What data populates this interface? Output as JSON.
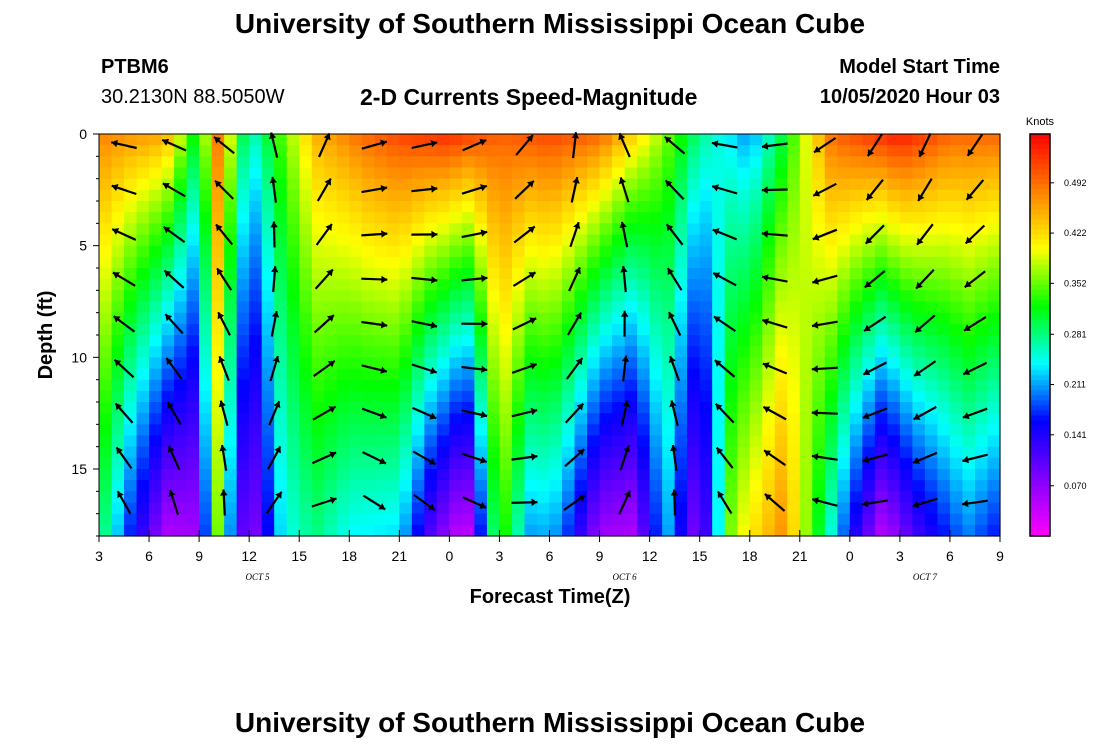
{
  "header": {
    "title": "University of Southern Mississippi Ocean Cube",
    "station_id": "PTBM6",
    "station_coords": "30.2130N 88.5050W",
    "chart_title": "2-D Currents Speed-Magnitude",
    "model_start_label": "Model Start Time",
    "model_start_value": "10/05/2020 Hour 03"
  },
  "footer": {
    "title": "University of Southern Mississippi Ocean Cube"
  },
  "chart_data": {
    "type": "heatmap",
    "title": "2-D Currents Speed-Magnitude",
    "xlabel": "Forecast Time(Z)",
    "ylabel": "Depth (ft)",
    "x_ticks": [
      "3",
      "6",
      "9",
      "12",
      "15",
      "18",
      "21",
      "0",
      "3",
      "6",
      "9",
      "12",
      "15",
      "18",
      "21",
      "0",
      "3",
      "6",
      "9"
    ],
    "x_range_hours": [
      0,
      54
    ],
    "date_labels": [
      {
        "label": "OCT 5",
        "hour": 9.5
      },
      {
        "label": "OCT 6",
        "hour": 31.5
      },
      {
        "label": "OCT 7",
        "hour": 49.5
      }
    ],
    "y_ticks": [
      0,
      5,
      10,
      15
    ],
    "ylim": [
      0,
      18
    ],
    "y_inverted": true,
    "colorbar": {
      "unit": "Knots",
      "ticks": [
        0.07,
        0.141,
        0.211,
        0.281,
        0.352,
        0.422,
        0.492
      ],
      "tick_labels": [
        "0.070",
        "0.141",
        "0.211",
        "0.281",
        "0.352",
        "0.422",
        "0.492"
      ],
      "range": [
        0.0,
        0.56
      ],
      "colors": [
        "#ff00ff",
        "#8000ff",
        "#0000ff",
        "#00ffff",
        "#00ff00",
        "#ffff00",
        "#ff8000",
        "#ff0000"
      ]
    },
    "surface_speed_by_hour": [
      [
        0,
        0.48
      ],
      [
        4,
        0.46
      ],
      [
        6,
        0.3
      ],
      [
        7,
        0.5
      ],
      [
        9,
        0.25
      ],
      [
        13,
        0.45
      ],
      [
        16,
        0.5
      ],
      [
        18,
        0.52
      ],
      [
        21,
        0.54
      ],
      [
        24,
        0.5
      ],
      [
        27,
        0.52
      ],
      [
        30,
        0.5
      ],
      [
        33,
        0.4
      ],
      [
        36,
        0.28
      ],
      [
        39,
        0.2
      ],
      [
        41,
        0.3
      ],
      [
        44,
        0.5
      ],
      [
        48,
        0.55
      ],
      [
        51,
        0.5
      ],
      [
        54,
        0.5
      ]
    ],
    "bottom_speed_by_hour": [
      [
        0,
        0.3
      ],
      [
        2,
        0.16
      ],
      [
        4,
        0.05
      ],
      [
        6,
        0.06
      ],
      [
        7,
        0.38
      ],
      [
        8,
        0.18
      ],
      [
        9,
        0.05
      ],
      [
        11,
        0.24
      ],
      [
        13,
        0.28
      ],
      [
        15,
        0.24
      ],
      [
        18,
        0.23
      ],
      [
        20,
        0.1
      ],
      [
        22,
        0.02
      ],
      [
        24,
        0.35
      ],
      [
        26,
        0.2
      ],
      [
        27,
        0.22
      ],
      [
        28,
        0.18
      ],
      [
        30,
        0.06
      ],
      [
        32,
        0.05
      ],
      [
        34,
        0.22
      ],
      [
        36,
        0.06
      ],
      [
        38,
        0.38
      ],
      [
        41,
        0.47
      ],
      [
        43,
        0.32
      ],
      [
        45,
        0.16
      ],
      [
        47,
        0.04
      ],
      [
        49,
        0.12
      ],
      [
        52,
        0.2
      ],
      [
        54,
        0.16
      ]
    ],
    "current_directions_deg_by_hour": [
      [
        0,
        165
      ],
      [
        2,
        170
      ],
      [
        4,
        160
      ],
      [
        6,
        150
      ],
      [
        8,
        140
      ],
      [
        10,
        110
      ],
      [
        12,
        90
      ],
      [
        14,
        60
      ],
      [
        16,
        20
      ],
      [
        18,
        10
      ],
      [
        20,
        15
      ],
      [
        22,
        20
      ],
      [
        24,
        40
      ],
      [
        26,
        55
      ],
      [
        28,
        80
      ],
      [
        30,
        100
      ],
      [
        32,
        120
      ],
      [
        34,
        135
      ],
      [
        36,
        160
      ],
      [
        38,
        175
      ],
      [
        40,
        185
      ],
      [
        42,
        200
      ],
      [
        44,
        220
      ],
      [
        46,
        235
      ],
      [
        48,
        250
      ],
      [
        50,
        245
      ],
      [
        52,
        240
      ],
      [
        54,
        230
      ]
    ]
  }
}
